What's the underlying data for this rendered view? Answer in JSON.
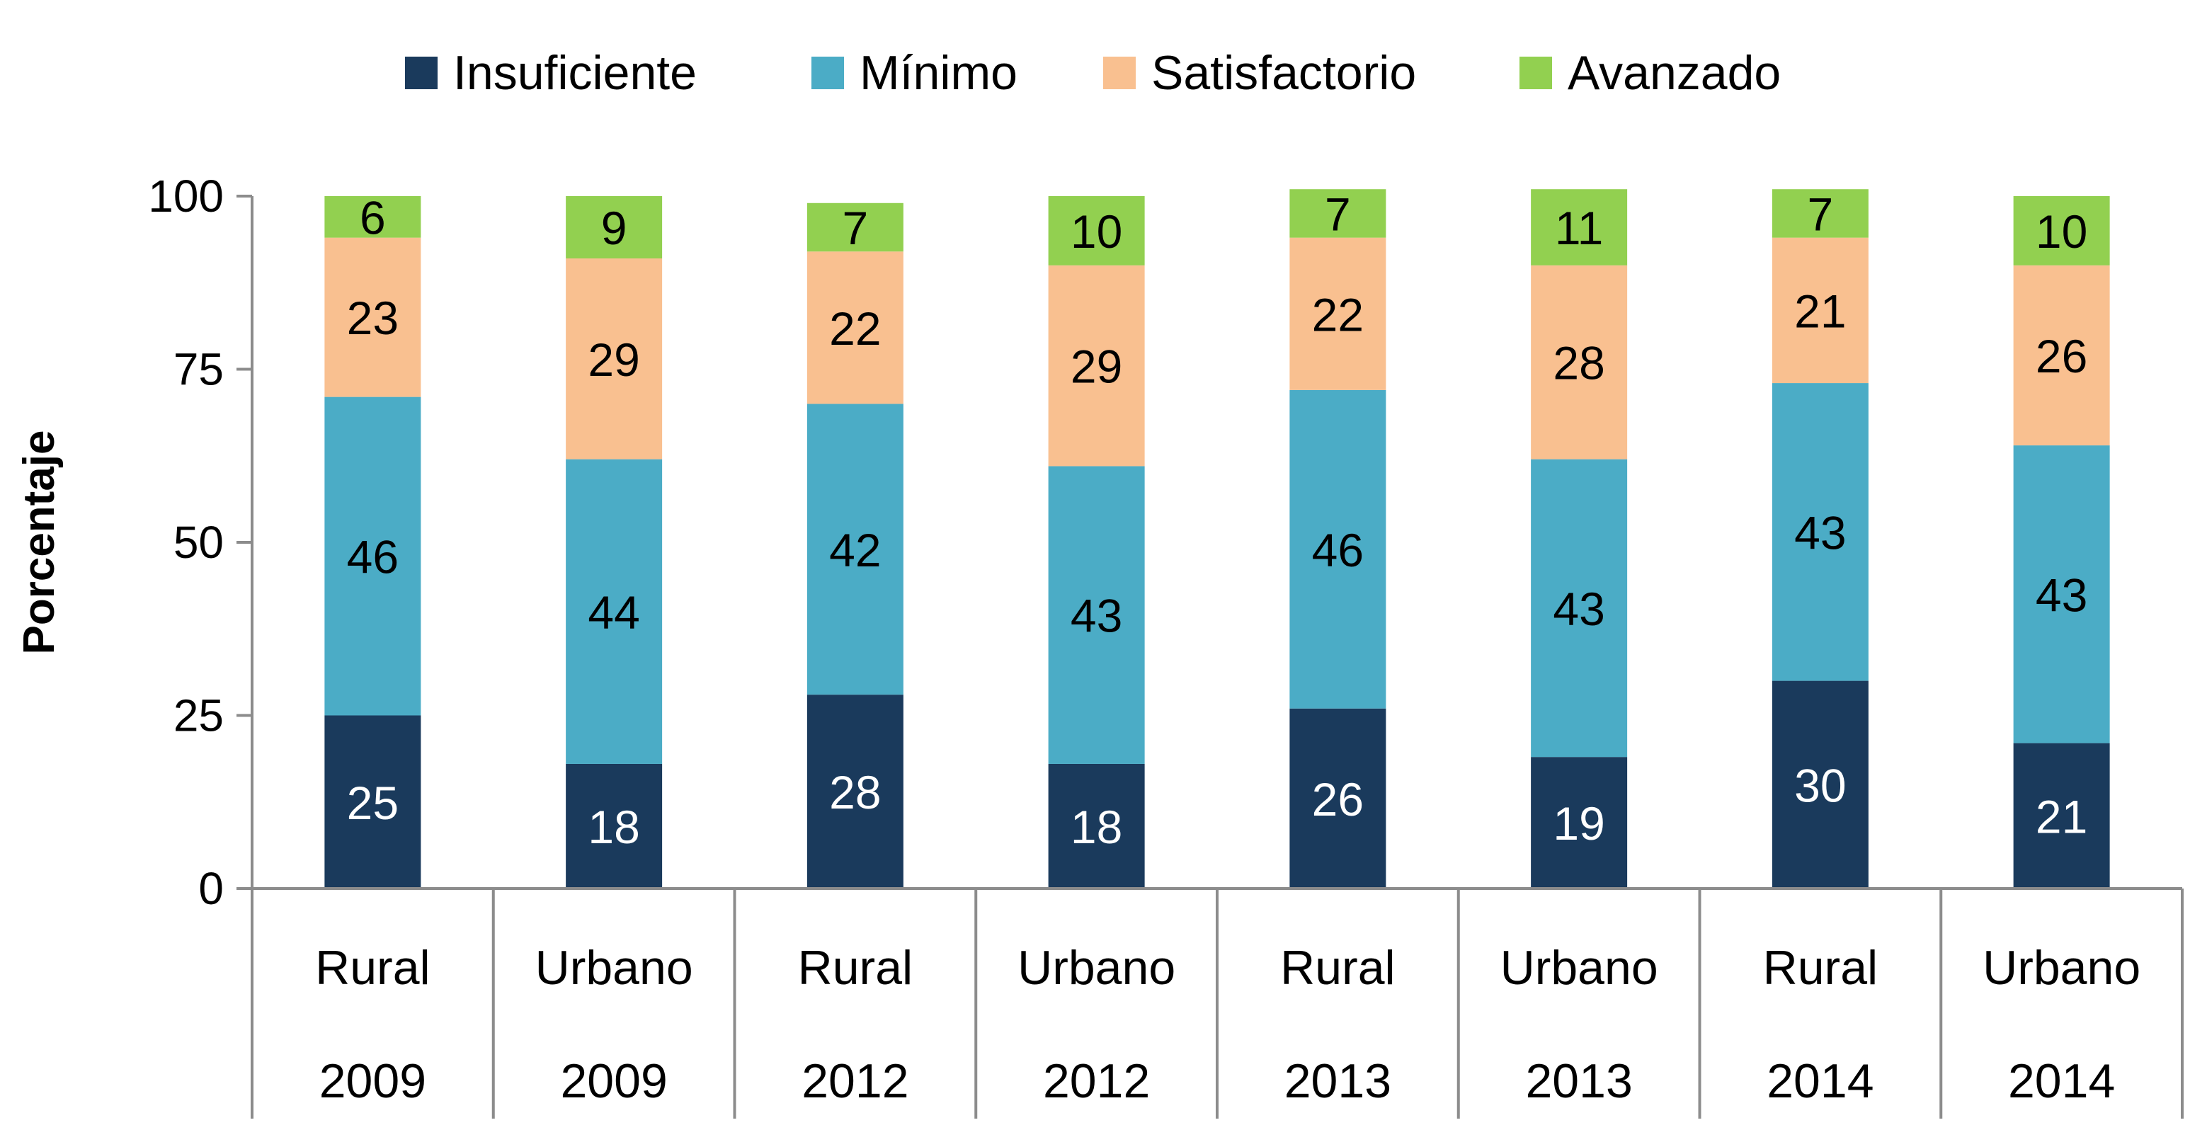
{
  "chart_data": {
    "type": "bar",
    "stacked": true,
    "title": "",
    "xlabel": "",
    "ylabel": "Porcentaje",
    "ylim": [
      0,
      100
    ],
    "yticks": [
      "0",
      "25",
      "50",
      "75",
      "100"
    ],
    "categories": [
      {
        "group": "Rural",
        "year": "2009"
      },
      {
        "group": "Urbano",
        "year": "2009"
      },
      {
        "group": "Rural",
        "year": "2012"
      },
      {
        "group": "Urbano",
        "year": "2012"
      },
      {
        "group": "Rural",
        "year": "2013"
      },
      {
        "group": "Urbano",
        "year": "2013"
      },
      {
        "group": "Rural",
        "year": "2014"
      },
      {
        "group": "Urbano",
        "year": "2014"
      }
    ],
    "series": [
      {
        "name": "Insuficiente",
        "color": "#1a3a5c",
        "label_color": "#ffffff",
        "values": [
          25,
          18,
          28,
          18,
          26,
          19,
          30,
          21
        ]
      },
      {
        "name": "Mínimo",
        "color": "#4bacc6",
        "label_color": "#000000",
        "values": [
          46,
          44,
          42,
          43,
          46,
          43,
          43,
          43
        ]
      },
      {
        "name": "Satisfactorio",
        "color": "#f9c090",
        "label_color": "#000000",
        "values": [
          23,
          29,
          22,
          29,
          22,
          28,
          21,
          26
        ]
      },
      {
        "name": "Avanzado",
        "color": "#92d050",
        "label_color": "#000000",
        "values": [
          6,
          9,
          7,
          10,
          7,
          11,
          7,
          10
        ]
      }
    ],
    "legend_position": "top-center"
  }
}
